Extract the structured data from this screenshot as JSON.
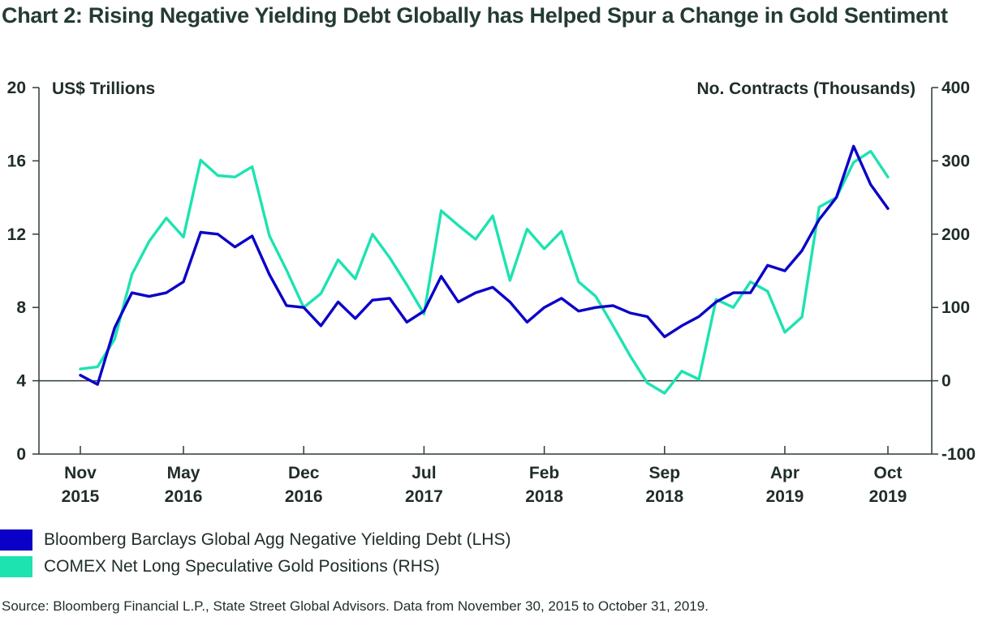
{
  "title": "Chart 2: Rising Negative Yielding Debt Globally has Helped Spur a Change in Gold Sentiment",
  "source": "Source:  Bloomberg Financial L.P., State Street Global Advisors. Data from November 30, 2015 to October 31, 2019.",
  "chart_data": {
    "type": "line",
    "ylabel_left": "US$ Trillions",
    "ylabel_right": "No. Contracts (Thousands)",
    "ylim_left": [
      0,
      20
    ],
    "ylim_right": [
      -100,
      400
    ],
    "yticks_left": [
      "0",
      "4",
      "8",
      "12",
      "16",
      "20"
    ],
    "yticks_right": [
      "-100",
      "0",
      "100",
      "200",
      "300",
      "400"
    ],
    "x_ticks": [
      {
        "line1": "Nov",
        "line2": "2015"
      },
      {
        "line1": "May",
        "line2": "2016"
      },
      {
        "line1": "Dec",
        "line2": "2016"
      },
      {
        "line1": "Jul",
        "line2": "2017"
      },
      {
        "line1": "Feb",
        "line2": "2018"
      },
      {
        "line1": "Sep",
        "line2": "2018"
      },
      {
        "line1": "Apr",
        "line2": "2019"
      },
      {
        "line1": "Oct",
        "line2": "2019"
      }
    ],
    "x_tick_months": [
      0,
      6,
      13,
      20,
      27,
      34,
      41,
      47
    ],
    "x_range_months": [
      0,
      47
    ],
    "zero_line_right": 0,
    "series": [
      {
        "name": "Bloomberg Barclays Global Agg Negative Yielding Debt (LHS)",
        "axis": "left",
        "color": "#0b00c8",
        "values": [
          4.3,
          3.8,
          6.9,
          8.8,
          8.6,
          8.8,
          9.4,
          12.1,
          12.0,
          11.3,
          11.9,
          9.8,
          8.1,
          8.0,
          7.0,
          8.3,
          7.4,
          8.4,
          8.5,
          7.2,
          7.8,
          9.7,
          8.3,
          8.8,
          9.1,
          8.3,
          7.2,
          8.0,
          8.5,
          7.8,
          8.0,
          8.1,
          7.7,
          7.5,
          6.4,
          7.0,
          7.5,
          8.3,
          8.8,
          8.8,
          10.3,
          10.0,
          11.1,
          12.8,
          14.0,
          16.8,
          14.7,
          13.4
        ]
      },
      {
        "name": "COMEX Net Long Speculative Gold Positions (RHS)",
        "axis": "right",
        "color": "#1de3b0",
        "values": [
          16,
          19,
          57,
          145,
          190,
          222,
          196,
          301,
          280,
          278,
          292,
          198,
          151,
          100,
          119,
          165,
          139,
          200,
          168,
          131,
          91,
          232,
          212,
          193,
          225,
          137,
          207,
          180,
          204,
          135,
          115,
          75,
          34,
          -3,
          -17,
          13,
          2,
          111,
          100,
          135,
          122,
          66,
          87,
          237,
          250,
          298,
          313,
          278
        ]
      }
    ]
  }
}
